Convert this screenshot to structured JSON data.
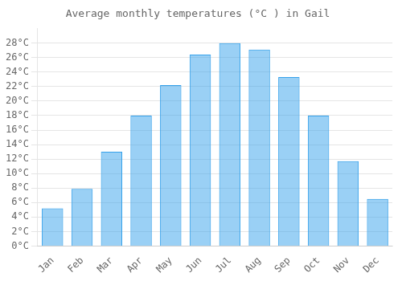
{
  "chart_data": {
    "type": "bar",
    "title": "Average monthly temperatures (°C ) in Gail",
    "categories": [
      "Jan",
      "Feb",
      "Mar",
      "Apr",
      "May",
      "Jun",
      "Jul",
      "Aug",
      "Sep",
      "Oct",
      "Nov",
      "Dec"
    ],
    "values": [
      5.2,
      7.9,
      13.0,
      18.0,
      22.2,
      26.4,
      28.0,
      27.1,
      23.3,
      18.0,
      11.7,
      6.5
    ],
    "ylim": [
      0,
      30
    ],
    "yticks": [
      {
        "value": 0,
        "label": "0°C"
      },
      {
        "value": 2,
        "label": "2°C"
      },
      {
        "value": 4,
        "label": "4°C"
      },
      {
        "value": 6,
        "label": "6°C"
      },
      {
        "value": 8,
        "label": "8°C"
      },
      {
        "value": 10,
        "label": "10°C"
      },
      {
        "value": 12,
        "label": "12°C"
      },
      {
        "value": 14,
        "label": "14°C"
      },
      {
        "value": 16,
        "label": "16°C"
      },
      {
        "value": 18,
        "label": "18°C"
      },
      {
        "value": 20,
        "label": "20°C"
      },
      {
        "value": 22,
        "label": "22°C"
      },
      {
        "value": 24,
        "label": "24°C"
      },
      {
        "value": 26,
        "label": "26°C"
      },
      {
        "value": 28,
        "label": "28°C"
      }
    ],
    "grid": true
  }
}
